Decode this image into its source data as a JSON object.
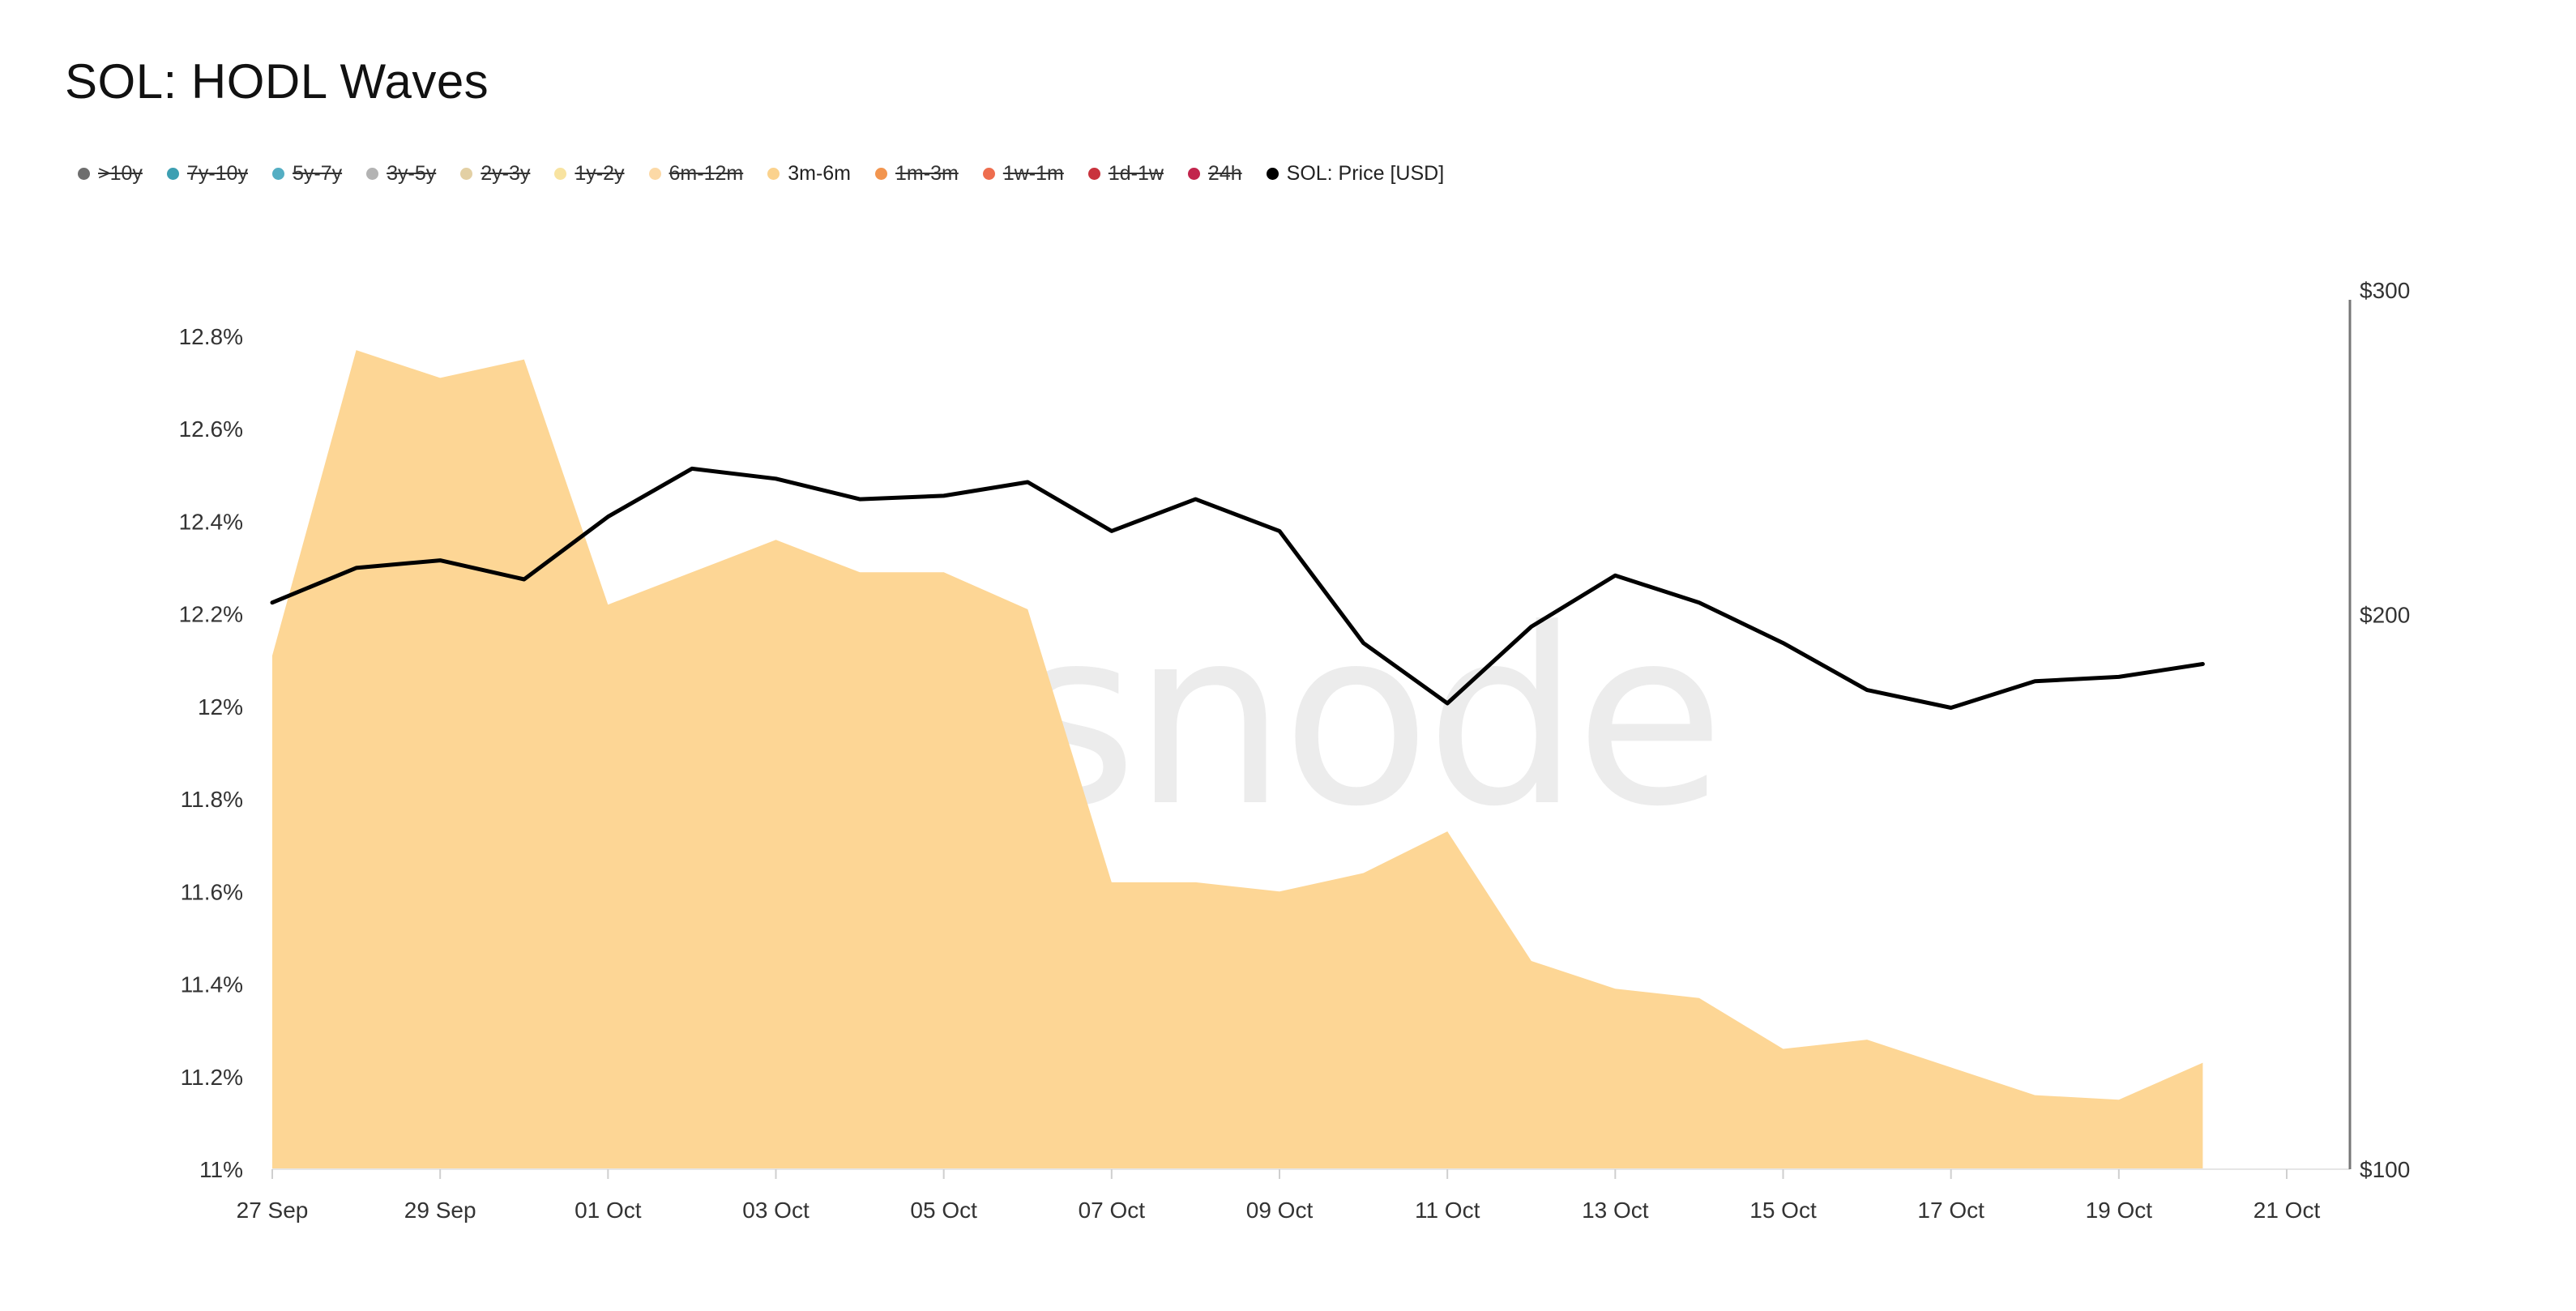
{
  "title": "SOL: HODL Waves",
  "watermark": "glassnode",
  "legend": [
    {
      "label": ">10y",
      "color": "#6e6e6e",
      "enabled": false
    },
    {
      "label": "7y-10y",
      "color": "#3d9fb2",
      "enabled": false
    },
    {
      "label": "5y-7y",
      "color": "#54aec3",
      "enabled": false
    },
    {
      "label": "3y-5y",
      "color": "#b3b3b3",
      "enabled": false
    },
    {
      "label": "2y-3y",
      "color": "#e3d0a4",
      "enabled": false
    },
    {
      "label": "1y-2y",
      "color": "#f8e3a0",
      "enabled": false
    },
    {
      "label": "6m-12m",
      "color": "#fcd9a6",
      "enabled": false
    },
    {
      "label": "3m-6m",
      "color": "#fbd28d",
      "enabled": true
    },
    {
      "label": "1m-3m",
      "color": "#f2954f",
      "enabled": false
    },
    {
      "label": "1w-1m",
      "color": "#ee6d4e",
      "enabled": false
    },
    {
      "label": "1d-1w",
      "color": "#c9333d",
      "enabled": false
    },
    {
      "label": "24h",
      "color": "#c2254d",
      "enabled": false
    },
    {
      "label": "SOL: Price [USD]",
      "color": "#000000",
      "enabled": true
    }
  ],
  "chart_data": {
    "type": "area",
    "x": [
      "27 Sep",
      "28 Sep",
      "29 Sep",
      "30 Sep",
      "01 Oct",
      "02 Oct",
      "03 Oct",
      "04 Oct",
      "05 Oct",
      "06 Oct",
      "07 Oct",
      "08 Oct",
      "09 Oct",
      "10 Oct",
      "11 Oct",
      "12 Oct",
      "13 Oct",
      "14 Oct",
      "15 Oct",
      "16 Oct",
      "17 Oct",
      "18 Oct",
      "19 Oct",
      "20 Oct"
    ],
    "x_ticks": [
      "27 Sep",
      "29 Sep",
      "01 Oct",
      "03 Oct",
      "05 Oct",
      "07 Oct",
      "09 Oct",
      "11 Oct",
      "13 Oct",
      "15 Oct",
      "17 Oct",
      "19 Oct",
      "21 Oct"
    ],
    "series": [
      {
        "name": "3m-6m",
        "axis": "left",
        "color": "#fdd695",
        "kind": "area",
        "values": [
          12.11,
          12.77,
          12.71,
          12.75,
          12.22,
          12.29,
          12.36,
          12.29,
          12.29,
          12.21,
          11.62,
          11.62,
          11.6,
          11.64,
          11.73,
          11.45,
          11.39,
          11.37,
          11.26,
          11.28,
          11.22,
          11.16,
          11.15,
          11.23
        ]
      },
      {
        "name": "SOL: Price [USD]",
        "axis": "right",
        "color": "#000000",
        "kind": "line",
        "values": [
          203,
          212,
          214,
          209,
          226,
          240,
          237,
          231,
          232,
          236,
          222,
          231,
          222,
          193,
          179,
          197,
          210,
          203,
          193,
          182,
          178,
          184,
          185,
          188
        ]
      }
    ],
    "left_axis": {
      "min": 11.0,
      "max": 12.8,
      "ticks": [
        "12.8%",
        "12.6%",
        "12.4%",
        "12.2%",
        "12%",
        "11.8%",
        "11.6%",
        "11.4%",
        "11.2%",
        "11%"
      ]
    },
    "right_axis": {
      "scale": "log",
      "min": 100,
      "max": 300,
      "ticks": [
        "$300",
        "$200",
        "$100"
      ]
    },
    "grid": false,
    "legend_position": "top-left"
  }
}
